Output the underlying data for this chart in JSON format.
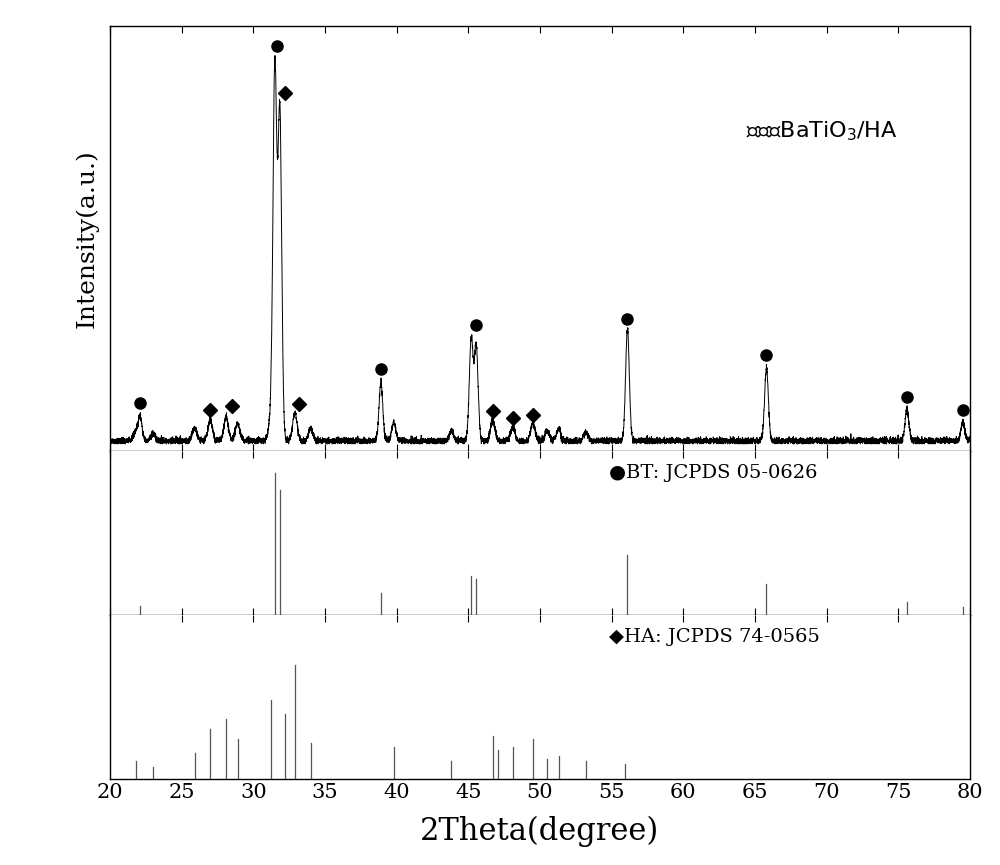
{
  "xmin": 20,
  "xmax": 80,
  "xlabel": "2Theta(degree)",
  "ylabel": "Intensity(a.u.)",
  "title_sample": "四方相BaTiO₃/HA",
  "label_BT": "•BT: JCPDS 05-0626",
  "label_HA": "◆HA: JCPDS 74-0565",
  "noise_seed": 42,
  "background_color": "#ffffff",
  "line_color": "#000000",
  "bt_peaks": [
    22.1,
    31.5,
    31.85,
    38.9,
    45.2,
    45.55,
    56.1,
    65.8,
    75.6,
    79.5
  ],
  "bt_heights": [
    0.065,
    1.0,
    0.88,
    0.155,
    0.275,
    0.255,
    0.3,
    0.195,
    0.085,
    0.052
  ],
  "ha_peaks": [
    21.8,
    23.0,
    25.9,
    27.0,
    28.1,
    28.9,
    31.2,
    32.9,
    34.0,
    39.8,
    43.8,
    46.7,
    48.1,
    49.5,
    50.5,
    51.3,
    53.2
  ],
  "ha_heights": [
    0.025,
    0.02,
    0.035,
    0.055,
    0.065,
    0.048,
    0.055,
    0.075,
    0.035,
    0.048,
    0.028,
    0.055,
    0.038,
    0.048,
    0.028,
    0.032,
    0.025
  ],
  "bt_ref_peaks": [
    22.1,
    31.5,
    31.85,
    38.9,
    45.2,
    45.55,
    56.1,
    65.8,
    75.6,
    79.5
  ],
  "bt_ref_heights": [
    0.065,
    1.0,
    0.88,
    0.155,
    0.275,
    0.255,
    0.42,
    0.22,
    0.09,
    0.055
  ],
  "ha_ref_peaks": [
    21.8,
    23.0,
    25.9,
    27.0,
    28.1,
    28.9,
    31.2,
    32.2,
    32.9,
    34.0,
    39.8,
    43.8,
    46.7,
    47.1,
    48.1,
    49.5,
    50.5,
    51.3,
    53.2,
    55.9
  ],
  "ha_ref_heights": [
    0.12,
    0.08,
    0.18,
    0.35,
    0.42,
    0.28,
    0.55,
    0.45,
    0.8,
    0.25,
    0.22,
    0.12,
    0.3,
    0.2,
    0.22,
    0.28,
    0.14,
    0.16,
    0.12,
    0.1
  ],
  "bt_marker_x": [
    22.1,
    31.65,
    38.9,
    45.55,
    56.1,
    65.8,
    75.6,
    79.5
  ],
  "ha_marker_x": [
    27.0,
    28.5,
    32.2,
    33.2,
    46.7,
    48.1,
    49.5
  ]
}
